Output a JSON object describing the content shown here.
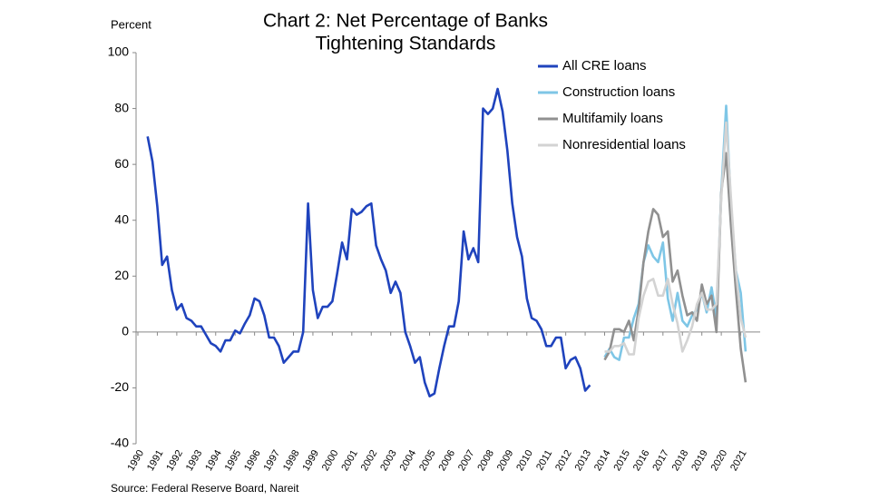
{
  "chart_data": {
    "type": "line",
    "title": [
      "Chart 2: Net Percentage of Banks",
      "Tightening Standards"
    ],
    "y_label": "Percent",
    "source": "Source: Federal Reserve Board, Nareit",
    "xlim": [
      1990,
      2022
    ],
    "xticks": [
      1990,
      1991,
      1992,
      1993,
      1994,
      1995,
      1996,
      1997,
      1998,
      1999,
      2000,
      2001,
      2002,
      2003,
      2004,
      2005,
      2006,
      2007,
      2008,
      2009,
      2010,
      2011,
      2012,
      2013,
      2014,
      2015,
      2016,
      2017,
      2018,
      2019,
      2020,
      2021
    ],
    "ylim": [
      -40,
      100
    ],
    "yticks": [
      -40,
      -20,
      0,
      20,
      40,
      60,
      80,
      100
    ],
    "grid": false,
    "legend": "upper right",
    "series": [
      {
        "name": "All CRE loans",
        "color": "#1f43bd",
        "x": [
          1990.5,
          1990.75,
          1991,
          1991.25,
          1991.5,
          1991.75,
          1992,
          1992.25,
          1992.5,
          1992.75,
          1993,
          1993.25,
          1993.5,
          1993.75,
          1994,
          1994.25,
          1994.5,
          1994.75,
          1995,
          1995.25,
          1995.5,
          1995.75,
          1996,
          1996.25,
          1996.5,
          1996.75,
          1997,
          1997.25,
          1997.5,
          1997.75,
          1998,
          1998.25,
          1998.5,
          1998.75,
          1999,
          1999.25,
          1999.5,
          1999.75,
          2000,
          2000.25,
          2000.5,
          2000.75,
          2001,
          2001.25,
          2001.5,
          2001.75,
          2002,
          2002.25,
          2002.5,
          2002.75,
          2003,
          2003.25,
          2003.5,
          2003.75,
          2004,
          2004.25,
          2004.5,
          2004.75,
          2005,
          2005.25,
          2005.5,
          2005.75,
          2006,
          2006.25,
          2006.5,
          2006.75,
          2007,
          2007.25,
          2007.5,
          2007.75,
          2008,
          2008.25,
          2008.5,
          2008.75,
          2009,
          2009.25,
          2009.5,
          2009.75,
          2010,
          2010.25,
          2010.5,
          2010.75,
          2011,
          2011.25,
          2011.5,
          2011.75,
          2012,
          2012.25,
          2012.5,
          2012.75,
          2013,
          2013.25
        ],
        "values": [
          70,
          61,
          45,
          24,
          27,
          15,
          8,
          10,
          5,
          4,
          2,
          2,
          -1,
          -4,
          -5,
          -7,
          -3,
          -3,
          0.5,
          -0.5,
          3,
          6,
          12,
          11,
          6,
          -2,
          -2,
          -5,
          -11,
          -9,
          -7,
          -7,
          0,
          46,
          15,
          5,
          9,
          9,
          11,
          21,
          32,
          26,
          44,
          42,
          43,
          45,
          46,
          31,
          26,
          22,
          14,
          18,
          14,
          0,
          -5,
          -11,
          -9,
          -18,
          -23,
          -22,
          -13,
          -5,
          2,
          2,
          11,
          36,
          26,
          30,
          25,
          80,
          78,
          80,
          87,
          79,
          65,
          46,
          34,
          27,
          12,
          5,
          4,
          1,
          -5,
          -5,
          -2,
          -2,
          -13,
          -10,
          -9,
          -13,
          -21,
          -19
        ]
      },
      {
        "name": "Construction loans",
        "color": "#7ec6e6",
        "x": [
          2014,
          2014.25,
          2014.5,
          2014.75,
          2015,
          2015.25,
          2015.5,
          2015.75,
          2016,
          2016.25,
          2016.5,
          2016.75,
          2017,
          2017.25,
          2017.5,
          2017.75,
          2018,
          2018.25,
          2018.5,
          2018.75,
          2019,
          2019.25,
          2019.5,
          2019.75,
          2020,
          2020.25,
          2020.5,
          2020.75,
          2021,
          2021.25
        ],
        "values": [
          -9,
          -6,
          -9,
          -10,
          -2,
          -2,
          5,
          10,
          25,
          31,
          27,
          25,
          32,
          12,
          4,
          14,
          4,
          2,
          6,
          8,
          14,
          7,
          16,
          5,
          50,
          81,
          45,
          22,
          14,
          -7
        ]
      },
      {
        "name": "Multifamily loans",
        "color": "#909090",
        "x": [
          2014,
          2014.25,
          2014.5,
          2014.75,
          2015,
          2015.25,
          2015.5,
          2015.75,
          2016,
          2016.25,
          2016.5,
          2016.75,
          2017,
          2017.25,
          2017.5,
          2017.75,
          2018,
          2018.25,
          2018.5,
          2018.75,
          2019,
          2019.25,
          2019.5,
          2019.75,
          2020,
          2020.25,
          2020.5,
          2020.75,
          2021,
          2021.25
        ],
        "values": [
          -10,
          -7,
          1,
          1,
          0,
          4,
          -3,
          8,
          25,
          36,
          44,
          42,
          34,
          36,
          18,
          22,
          13,
          6,
          7,
          4,
          17,
          10,
          13,
          0,
          50,
          64,
          38,
          15,
          -6,
          -18
        ]
      },
      {
        "name": "Nonresidential loans",
        "color": "#d3d3d3",
        "x": [
          2014,
          2014.25,
          2014.5,
          2014.75,
          2015,
          2015.25,
          2015.5,
          2015.75,
          2016,
          2016.25,
          2016.5,
          2016.75,
          2017,
          2017.25,
          2017.5,
          2017.75,
          2018,
          2018.25,
          2018.5,
          2018.75,
          2019,
          2019.25,
          2019.5,
          2019.75,
          2020,
          2020.25,
          2020.5,
          2020.75,
          2021,
          2021.25
        ],
        "values": [
          -7,
          -7,
          -5,
          -5,
          -4,
          -8,
          -8,
          5,
          13,
          18,
          19,
          13,
          13,
          19,
          10,
          3,
          -7,
          -3,
          2,
          10,
          14,
          8,
          8,
          10,
          48,
          75,
          48,
          22,
          5,
          -2
        ]
      }
    ]
  }
}
